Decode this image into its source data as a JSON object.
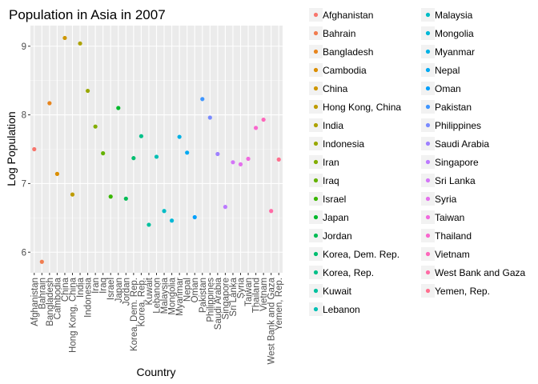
{
  "chart_data": {
    "type": "scatter",
    "title": "Population in Asia in 2007",
    "xlabel": "Country",
    "ylabel": "Log Population",
    "ylim": [
      5.7,
      9.3
    ],
    "yticks": [
      6,
      7,
      8,
      9
    ],
    "grid": true,
    "legend_position": "right",
    "categories": [
      "Afghanistan",
      "Bahrain",
      "Bangladesh",
      "Cambodia",
      "China",
      "Hong Kong, China",
      "India",
      "Indonesia",
      "Iran",
      "Iraq",
      "Israel",
      "Japan",
      "Jordan",
      "Korea, Dem. Rep.",
      "Korea, Rep.",
      "Kuwait",
      "Lebanon",
      "Malaysia",
      "Mongolia",
      "Myanmar",
      "Nepal",
      "Oman",
      "Pakistan",
      "Philippines",
      "Saudi Arabia",
      "Singapore",
      "Sri Lanka",
      "Syria",
      "Taiwan",
      "Thailand",
      "Vietnam",
      "West Bank and Gaza",
      "Yemen, Rep."
    ],
    "values": [
      7.5,
      5.86,
      8.17,
      7.14,
      9.12,
      6.84,
      9.04,
      8.35,
      7.83,
      7.44,
      6.81,
      8.1,
      6.78,
      7.37,
      7.69,
      6.4,
      7.39,
      6.6,
      6.46,
      7.68,
      7.45,
      6.51,
      8.23,
      7.96,
      7.43,
      6.66,
      7.31,
      7.28,
      7.36,
      7.81,
      7.93,
      6.6,
      7.35
    ],
    "colors": [
      "#F8766D",
      "#F17D50",
      "#E7851E",
      "#DB8E00",
      "#CE9700",
      "#BE9C00",
      "#ADA200",
      "#99A800",
      "#82AD00",
      "#64B200",
      "#39B600",
      "#00B92C",
      "#00BC55",
      "#00BE70",
      "#00C089",
      "#00C19F",
      "#00C0B4",
      "#00BDC6",
      "#00B8D7",
      "#00B1E5",
      "#00A9F2",
      "#00A0FC",
      "#3F96FF",
      "#7A8BFF",
      "#9F81FF",
      "#BC7AFF",
      "#D376F7",
      "#E470EC",
      "#F16ADE",
      "#F967CE",
      "#FE67BB",
      "#FF6BA5",
      "#FF6F8E"
    ]
  }
}
